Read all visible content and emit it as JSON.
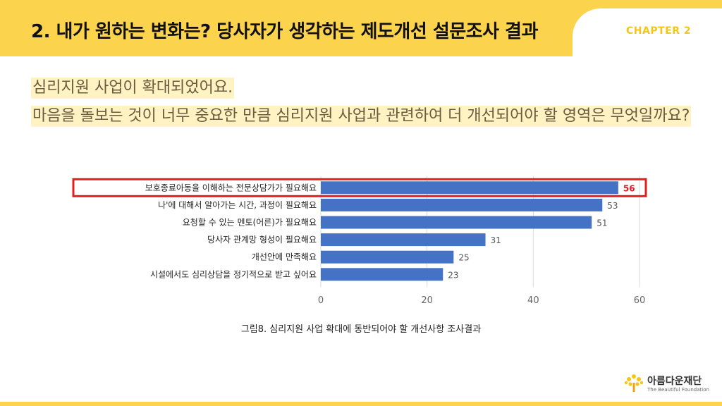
{
  "header": {
    "title": "2. 내가 원하는 변화는? 당사자가 생각하는 제도개선 설문조사 결과",
    "chapter": "CHAPTER 2"
  },
  "question": {
    "line1": "심리지원 사업이 확대되었어요.",
    "line2": "마음을 돌보는 것이 너무 중요한 만큼 심리지원 사업과 관련하여 더 개선되어야 할 영역은 무엇일까요?"
  },
  "caption": "그림8. 심리지원 사업 확대에 동반되어야 할 개선사항 조사결과",
  "logo": {
    "name": "아름다운재단",
    "english": "The Beautiful Foundation"
  },
  "colors": {
    "accent": "#FCD34D",
    "bar": "#4472C4",
    "highlight": "#E02020"
  },
  "chart_data": {
    "type": "bar",
    "orientation": "horizontal",
    "categories": [
      "보호종료아동을 이해하는 전문상담가가 필요해요",
      "나'에 대해서 알아가는 시간, 과정이 필요해요",
      "요청할 수 있는 멘토(어른)가 필요해요",
      "당사자 관계망 형성이 필요해요",
      "개선안에 만족해요",
      "시설에서도 심리상담을 정기적으로 받고 싶어요"
    ],
    "values": [
      56,
      53,
      51,
      31,
      25,
      23
    ],
    "xlim": [
      0,
      60
    ],
    "xticks": [
      0,
      20,
      40,
      60
    ],
    "highlight_index": 0,
    "grid": true
  }
}
